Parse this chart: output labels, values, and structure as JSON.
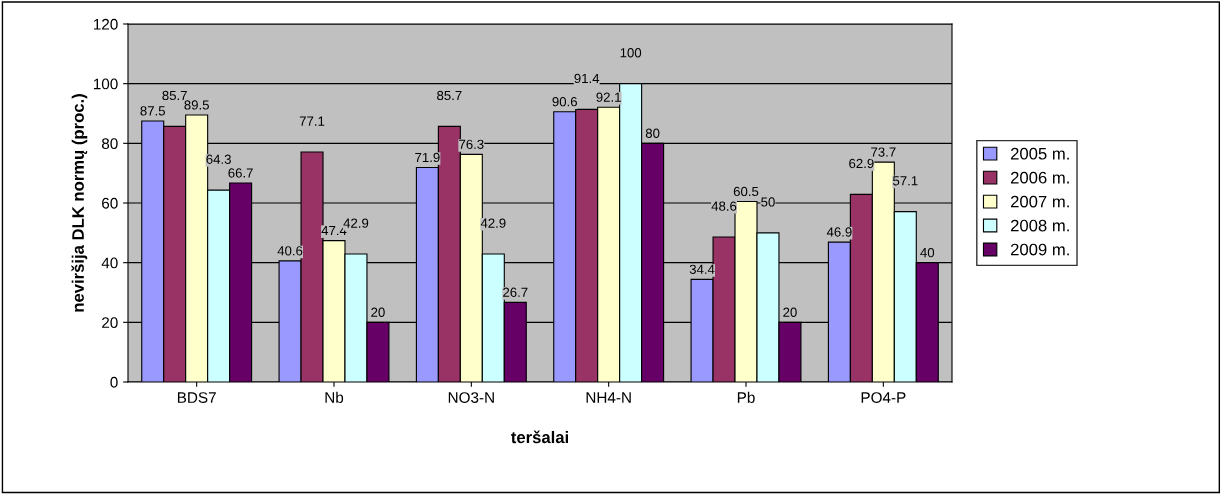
{
  "chart_data": {
    "type": "bar",
    "xlabel": "teršalai",
    "ylabel": "neviršija DLK normų (proc.)",
    "categories": [
      "BDS7",
      "Nb",
      "NO3-N",
      "NH4-N",
      "Pb",
      "PO4-P"
    ],
    "series": [
      {
        "name": "2005 m.",
        "color": "#9999ff",
        "values": [
          87.5,
          40.6,
          71.9,
          90.6,
          34.4,
          46.9
        ]
      },
      {
        "name": "2006 m.",
        "color": "#993366",
        "values": [
          85.7,
          77.1,
          85.7,
          91.4,
          48.6,
          62.9
        ]
      },
      {
        "name": "2007 m.",
        "color": "#ffffcc",
        "values": [
          89.5,
          47.4,
          76.3,
          92.1,
          60.5,
          73.7
        ]
      },
      {
        "name": "2008 m.",
        "color": "#ccffff",
        "values": [
          64.3,
          42.9,
          42.9,
          100,
          50,
          57.1
        ]
      },
      {
        "name": "2009 m.",
        "color": "#660066",
        "values": [
          66.7,
          20,
          26.7,
          80,
          20,
          40
        ]
      }
    ],
    "ylim": [
      0,
      120
    ],
    "yticks": [
      0,
      20,
      40,
      60,
      80,
      100,
      120
    ],
    "grid": "y",
    "legend": "right",
    "data_labels": true
  }
}
